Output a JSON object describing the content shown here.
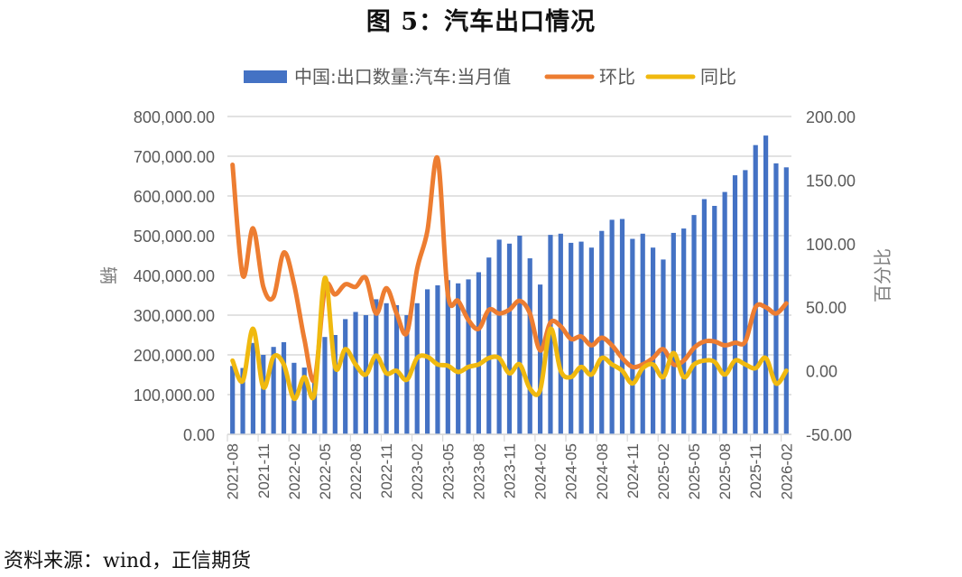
{
  "title": "图 5：汽车出口情况",
  "source": "资料来源：wind，正信期货",
  "chart_data": {
    "type": "bar+line",
    "title": "图 5：汽车出口情况",
    "grid": true,
    "legend_position": "top-center",
    "legend": [
      {
        "name": "中国:出口数量:汽车:当月值",
        "kind": "bar",
        "color": "#4472C4"
      },
      {
        "name": "环比",
        "kind": "line",
        "color": "#ED7D31"
      },
      {
        "name": "同比",
        "kind": "line",
        "color": "#F0B90F"
      }
    ],
    "y_left": {
      "label": "辆",
      "range": [
        0,
        800000
      ],
      "ticks": [
        "0.00",
        "100,000.00",
        "200,000.00",
        "300,000.00",
        "400,000.00",
        "500,000.00",
        "600,000.00",
        "700,000.00",
        "800,000.00"
      ]
    },
    "y_right": {
      "label": "百分比",
      "range": [
        -50,
        200
      ],
      "ticks": [
        "-50.00",
        "0.00",
        "50.00",
        "100.00",
        "150.00",
        "200.00"
      ]
    },
    "x_tick_labels": [
      "2021-08",
      "2021-11",
      "2022-02",
      "2022-05",
      "2022-08",
      "2022-11",
      "2023-02",
      "2023-05",
      "2023-08",
      "2023-11",
      "2024-02",
      "2024-05",
      "2024-08",
      "2024-11",
      "2025-02",
      "2025-05",
      "2025-08",
      "2025-11",
      "2026-02"
    ],
    "x_tick_every": 3,
    "categories": [
      "2021-08",
      "2021-09",
      "2021-10",
      "2021-11",
      "2021-12",
      "2022-01",
      "2022-02",
      "2022-03",
      "2022-04",
      "2022-05",
      "2022-06",
      "2022-07",
      "2022-08",
      "2022-09",
      "2022-10",
      "2022-11",
      "2022-12",
      "2023-01",
      "2023-02",
      "2023-03",
      "2023-04",
      "2023-05",
      "2023-06",
      "2023-07",
      "2023-08",
      "2023-09",
      "2023-10",
      "2023-11",
      "2023-12",
      "2024-01",
      "2024-02",
      "2024-03",
      "2024-04",
      "2024-05",
      "2024-06",
      "2024-07",
      "2024-08",
      "2024-09",
      "2024-10",
      "2024-11",
      "2024-12",
      "2025-01",
      "2025-02",
      "2025-03",
      "2025-04",
      "2025-05",
      "2025-06",
      "2025-07",
      "2025-08",
      "2025-09",
      "2025-10",
      "2025-11",
      "2025-12",
      "2026-01",
      "2026-02"
    ],
    "series": [
      {
        "name": "中国:出口数量:汽车:当月值",
        "type": "bar",
        "axis": "left",
        "values": [
          172000,
          167000,
          230000,
          200000,
          220000,
          232000,
          180000,
          168000,
          140000,
          245000,
          250000,
          290000,
          308000,
          300000,
          340000,
          330000,
          325000,
          300000,
          330000,
          365000,
          375000,
          388000,
          380000,
          390000,
          408000,
          445000,
          490000,
          480000,
          500000,
          443000,
          377000,
          502000,
          505000,
          482000,
          485000,
          470000,
          512000,
          540000,
          542000,
          492000,
          505000,
          470000,
          440000,
          507000,
          518000,
          552000,
          592000,
          575000,
          610000,
          652000,
          665000,
          728000,
          752000,
          682000,
          672000
        ]
      },
      {
        "name": "环比",
        "type": "line",
        "axis": "right",
        "values": [
          162,
          75,
          112,
          66,
          58,
          93,
          68,
          25,
          -7,
          65,
          60,
          68,
          66,
          73,
          45,
          65,
          45,
          30,
          80,
          110,
          167,
          60,
          55,
          40,
          33,
          48,
          45,
          48,
          55,
          45,
          16,
          38,
          35,
          25,
          27,
          20,
          26,
          20,
          10,
          3,
          5,
          10,
          17,
          5,
          8,
          18,
          23,
          23,
          20,
          22,
          23,
          50,
          50,
          45,
          53
        ]
      },
      {
        "name": "同比",
        "type": "line",
        "axis": "right",
        "values": [
          8,
          -8,
          33,
          -13,
          11,
          5,
          -22,
          -5,
          -18,
          73,
          3,
          17,
          5,
          -3,
          12,
          -2,
          0,
          -7,
          10,
          11,
          5,
          4,
          -1,
          3,
          5,
          10,
          10,
          -2,
          5,
          -14,
          -15,
          33,
          0,
          -5,
          3,
          -3,
          10,
          5,
          0,
          -10,
          2,
          5,
          -5,
          14,
          -5,
          5,
          8,
          7,
          -3,
          8,
          5,
          2,
          10,
          -10,
          0
        ]
      }
    ]
  }
}
